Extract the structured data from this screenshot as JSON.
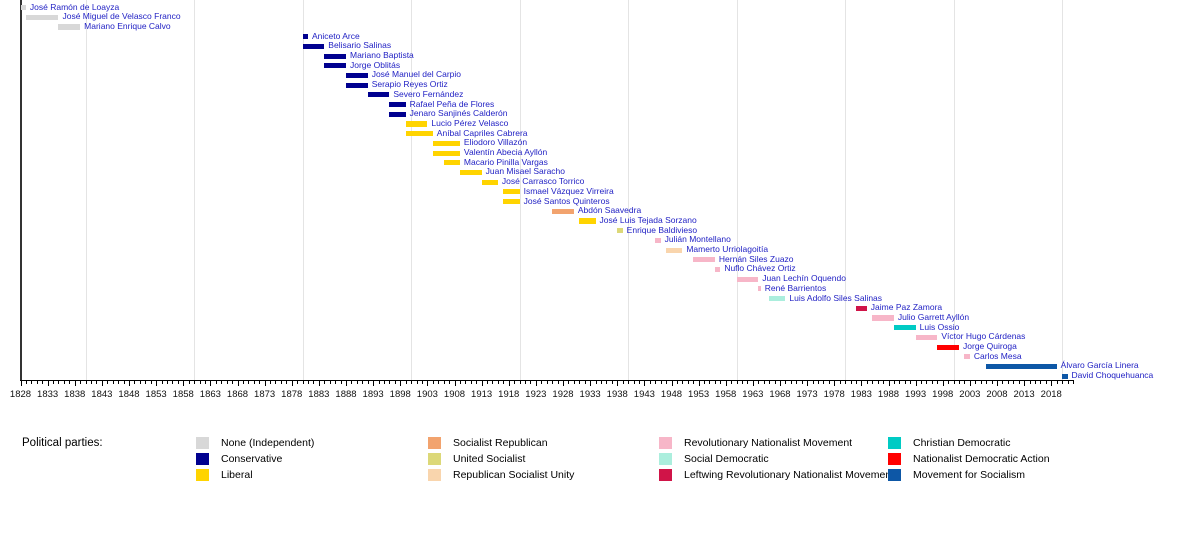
{
  "legend_title": "Political parties:",
  "parties": [
    {
      "key": "none",
      "label": "None (Independent)",
      "color": "#d8d8d8"
    },
    {
      "key": "conservative",
      "label": "Conservative",
      "color": "#00008f"
    },
    {
      "key": "liberal",
      "label": "Liberal",
      "color": "#ffd400"
    },
    {
      "key": "socialist_republican",
      "label": "Socialist Republican",
      "color": "#f2a36e"
    },
    {
      "key": "united_socialist",
      "label": "United Socialist",
      "color": "#dcd878"
    },
    {
      "key": "republican_socialist_unity",
      "label": "Republican Socialist Unity",
      "color": "#f9d5ad"
    },
    {
      "key": "mnr",
      "label": "Revolutionary Nationalist Movement",
      "color": "#f7b6c8"
    },
    {
      "key": "social_democratic",
      "label": "Social Democratic",
      "color": "#abeedd"
    },
    {
      "key": "mir",
      "label": "Leftwing Revolutionary Nationalist Movement",
      "color": "#d01448"
    },
    {
      "key": "christian_democratic",
      "label": "Christian Democratic",
      "color": "#00cbc4"
    },
    {
      "key": "adn",
      "label": "Nationalist Democratic Action",
      "color": "#ff0000"
    },
    {
      "key": "mas",
      "label": "Movement for Socialism",
      "color": "#0d57a6"
    }
  ],
  "chart_data": {
    "type": "bar",
    "subtype": "timeline-gantt",
    "xlabel": "",
    "ylabel": "",
    "axis": {
      "start_year": 1828,
      "end_year": 2022,
      "label_step": 5,
      "minor_tick_step": 1,
      "tick_labels": [
        "1828",
        "1833",
        "1838",
        "1843",
        "1848",
        "1853",
        "1858",
        "1863",
        "1868",
        "1873",
        "1878",
        "1883",
        "1888",
        "1893",
        "1898",
        "1903",
        "1908",
        "1913",
        "1918",
        "1923",
        "1928",
        "1933",
        "1938",
        "1943",
        "1948",
        "1953",
        "1958",
        "1963",
        "1968",
        "1973",
        "1978",
        "1983",
        "1988",
        "1993",
        "1998",
        "2003",
        "2008",
        "2013",
        "2018"
      ],
      "gridline_years": [
        1840,
        1860,
        1880,
        1900,
        1920,
        1940,
        1960,
        1980,
        2000,
        2020
      ]
    },
    "people": [
      {
        "name": "José Ramón de Loayza",
        "party": "none",
        "start": 1828,
        "end": 1829
      },
      {
        "name": "José Miguel de Velasco Franco",
        "party": "none",
        "start": 1829,
        "end": 1835
      },
      {
        "name": "Mariano Enrique Calvo",
        "party": "none",
        "start": 1835,
        "end": 1839
      },
      {
        "name": "Aniceto Arce",
        "party": "conservative",
        "start": 1880,
        "end": 1881
      },
      {
        "name": "Belisario Salinas",
        "party": "conservative",
        "start": 1880,
        "end": 1884
      },
      {
        "name": "Mariano Baptista",
        "party": "conservative",
        "start": 1884,
        "end": 1888
      },
      {
        "name": "Jorge Oblitás",
        "party": "conservative",
        "start": 1884,
        "end": 1888
      },
      {
        "name": "José Manuel del Carpio",
        "party": "conservative",
        "start": 1888,
        "end": 1892
      },
      {
        "name": "Serapio Reyes Ortiz",
        "party": "conservative",
        "start": 1888,
        "end": 1892
      },
      {
        "name": "Severo Fernández",
        "party": "conservative",
        "start": 1892,
        "end": 1896
      },
      {
        "name": "Rafael Peña de Flores",
        "party": "conservative",
        "start": 1896,
        "end": 1899
      },
      {
        "name": "Jenaro Sanjinés Calderón",
        "party": "conservative",
        "start": 1896,
        "end": 1899
      },
      {
        "name": "Lucio Pérez Velasco",
        "party": "liberal",
        "start": 1899,
        "end": 1903
      },
      {
        "name": "Aníbal Capriles Cabrera",
        "party": "liberal",
        "start": 1899,
        "end": 1904
      },
      {
        "name": "Eliodoro Villazón",
        "party": "liberal",
        "start": 1904,
        "end": 1909
      },
      {
        "name": "Valentín Abecia Ayllón",
        "party": "liberal",
        "start": 1904,
        "end": 1909
      },
      {
        "name": "Macario Pinilla Vargas",
        "party": "liberal",
        "start": 1906,
        "end": 1909
      },
      {
        "name": "Juan Misael Saracho",
        "party": "liberal",
        "start": 1909,
        "end": 1913
      },
      {
        "name": "José Carrasco Torrico",
        "party": "liberal",
        "start": 1913,
        "end": 1916
      },
      {
        "name": "Ismael Vázquez Virreira",
        "party": "liberal",
        "start": 1917,
        "end": 1920
      },
      {
        "name": "José Santos Quinteros",
        "party": "liberal",
        "start": 1917,
        "end": 1920
      },
      {
        "name": "Abdón Saavedra",
        "party": "socialist_republican",
        "start": 1926,
        "end": 1930
      },
      {
        "name": "José Luis Tejada Sorzano",
        "party": "liberal",
        "start": 1931,
        "end": 1934
      },
      {
        "name": "Enrique Baldivieso",
        "party": "united_socialist",
        "start": 1938,
        "end": 1939
      },
      {
        "name": "Julián Montellano",
        "party": "mnr",
        "start": 1945,
        "end": 1946
      },
      {
        "name": "Mamerto Urriolagoitía",
        "party": "republican_socialist_unity",
        "start": 1947,
        "end": 1950
      },
      {
        "name": "Hernán Siles Zuazo",
        "party": "mnr",
        "start": 1952,
        "end": 1956
      },
      {
        "name": "Nuflo Chávez Ortiz",
        "party": "mnr",
        "start": 1956,
        "end": 1957
      },
      {
        "name": "Juan Lechín Oquendo",
        "party": "mnr",
        "start": 1960,
        "end": 1964
      },
      {
        "name": "René Barrientos",
        "party": "mnr",
        "start": 1964,
        "end": 1964
      },
      {
        "name": "Luis Adolfo Siles Salinas",
        "party": "social_democratic",
        "start": 1966,
        "end": 1969
      },
      {
        "name": "Jaime Paz Zamora",
        "party": "mir",
        "start": 1982,
        "end": 1984
      },
      {
        "name": "Julio Garrett Ayllón",
        "party": "mnr",
        "start": 1985,
        "end": 1989
      },
      {
        "name": "Luis Ossio",
        "party": "christian_democratic",
        "start": 1989,
        "end": 1993
      },
      {
        "name": "Víctor Hugo Cárdenas",
        "party": "mnr",
        "start": 1993,
        "end": 1997
      },
      {
        "name": "Jorge Quiroga",
        "party": "adn",
        "start": 1997,
        "end": 2001
      },
      {
        "name": "Carlos Mesa",
        "party": "mnr",
        "start": 2002,
        "end": 2003
      },
      {
        "name": "Álvaro García Linera",
        "party": "mas",
        "start": 2006,
        "end": 2019
      },
      {
        "name": "David Choquehuanca",
        "party": "mas",
        "start": 2020,
        "end": 2021
      }
    ]
  }
}
